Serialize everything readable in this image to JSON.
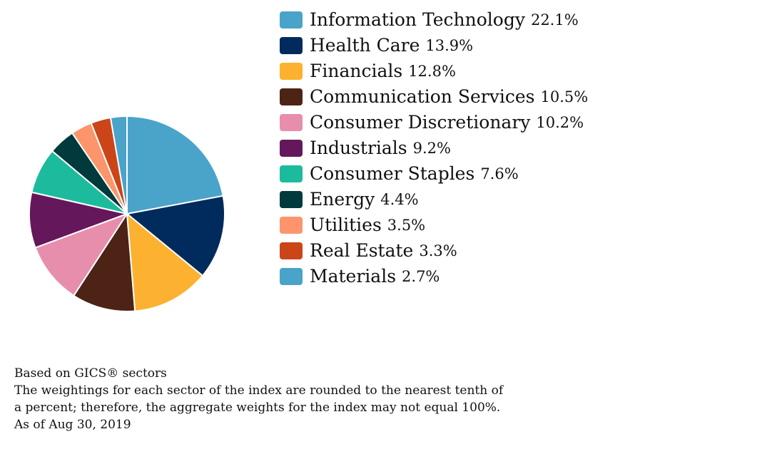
{
  "chart_data": {
    "type": "pie",
    "categories": [
      "Information Technology",
      "Health Care",
      "Financials",
      "Communication Services",
      "Consumer Discretionary",
      "Industrials",
      "Consumer Staples",
      "Energy",
      "Utilities",
      "Real Estate",
      "Materials"
    ],
    "values": [
      22.1,
      13.9,
      12.8,
      10.5,
      10.2,
      9.2,
      7.6,
      4.4,
      3.5,
      3.3,
      2.7
    ],
    "value_labels": [
      "22.1%",
      "13.9%",
      "12.8%",
      "10.5%",
      "10.2%",
      "9.2%",
      "7.6%",
      "4.4%",
      "3.5%",
      "3.3%",
      "2.7%"
    ],
    "colors": [
      "#4aa3c9",
      "#002b5c",
      "#fdb130",
      "#4d2316",
      "#e88ead",
      "#65175b",
      "#1dbb9e",
      "#003a3c",
      "#fc956c",
      "#cb4519",
      "#4aa3c9"
    ],
    "start_angle": "12 o'clock",
    "direction": "clockwise",
    "legend_position": "right"
  },
  "footnotes": [
    "Based on GICS® sectors",
    "The weightings for each sector of the index are rounded to the nearest tenth of",
    "a percent; therefore, the aggregate weights for the index may not equal 100%.",
    "As of Aug 30, 2019"
  ]
}
